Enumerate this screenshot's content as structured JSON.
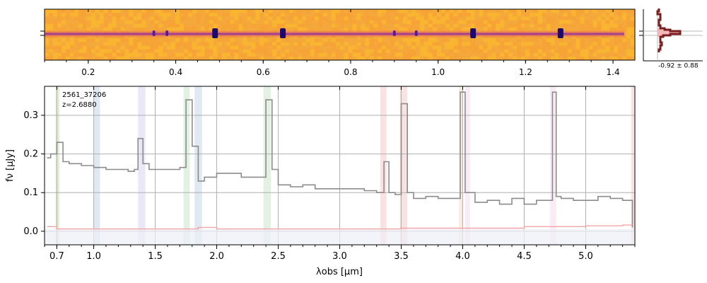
{
  "chart_data": [
    {
      "type": "heatmap",
      "panel": "2d-spectrum",
      "x_ticks": [
        "0.2",
        "0.4",
        "0.6",
        "0.8",
        "1.0",
        "1.2",
        "1.4"
      ],
      "x_tick_values": [
        0.2,
        0.4,
        0.6,
        0.8,
        1.0,
        1.2,
        1.4
      ],
      "xlim": [
        0.1,
        1.45
      ],
      "colormap": "plasma",
      "trace_absorption_features_x": [
        0.35,
        0.38,
        0.49,
        0.645,
        0.9,
        0.95,
        1.08,
        1.28
      ]
    },
    {
      "type": "line",
      "panel": "spatial-profile",
      "annotation": "-0.92 ± 0.88",
      "profile_color": "#7a1f1f",
      "fill_color": "#f4b6b8"
    },
    {
      "type": "line",
      "panel": "1d-spectrum",
      "annotations": [
        "2561_37206",
        "z=2.6880"
      ],
      "xlabel": "λobs [μm]",
      "ylabel": "fν [μJy]",
      "x_ticks": [
        "0.7",
        "1.0",
        "1.5",
        "2.0",
        "2.5",
        "3.0",
        "3.5",
        "4.0",
        "4.5",
        "5.0"
      ],
      "x_tick_values": [
        0.7,
        1.0,
        1.5,
        2.0,
        2.5,
        3.0,
        3.5,
        4.0,
        4.5,
        5.0
      ],
      "y_ticks": [
        "0.0",
        "0.1",
        "0.2",
        "0.3"
      ],
      "y_tick_values": [
        0.0,
        0.1,
        0.2,
        0.3
      ],
      "xlim": [
        0.6,
        5.4
      ],
      "ylim": [
        -0.035,
        0.375
      ],
      "grid": true,
      "series": [
        {
          "color": "#8c8c8c",
          "x": [
            0.62,
            0.65,
            0.7,
            0.75,
            0.8,
            0.9,
            1.0,
            1.1,
            1.2,
            1.28,
            1.33,
            1.36,
            1.4,
            1.45,
            1.5,
            1.6,
            1.7,
            1.75,
            1.8,
            1.85,
            1.9,
            2.0,
            2.1,
            2.2,
            2.3,
            2.4,
            2.45,
            2.5,
            2.6,
            2.7,
            2.8,
            3.0,
            3.2,
            3.3,
            3.36,
            3.4,
            3.45,
            3.5,
            3.55,
            3.6,
            3.7,
            3.8,
            3.9,
            3.98,
            4.02,
            4.1,
            4.2,
            4.3,
            4.4,
            4.5,
            4.6,
            4.7,
            4.73,
            4.76,
            4.8,
            4.9,
            5.0,
            5.1,
            5.2,
            5.3,
            5.35,
            5.38
          ],
          "y": [
            0.19,
            0.2,
            0.23,
            0.18,
            0.175,
            0.17,
            0.165,
            0.16,
            0.16,
            0.155,
            0.16,
            0.24,
            0.175,
            0.16,
            0.16,
            0.16,
            0.165,
            0.34,
            0.22,
            0.13,
            0.14,
            0.15,
            0.15,
            0.14,
            0.14,
            0.34,
            0.16,
            0.12,
            0.115,
            0.12,
            0.11,
            0.11,
            0.105,
            0.1,
            0.18,
            0.1,
            0.095,
            0.33,
            0.1,
            0.085,
            0.09,
            0.085,
            0.085,
            0.36,
            0.1,
            0.075,
            0.08,
            0.07,
            0.085,
            0.07,
            0.08,
            0.08,
            0.36,
            0.09,
            0.085,
            0.08,
            0.08,
            0.09,
            0.085,
            0.08,
            0.08,
            0.01
          ]
        },
        {
          "color": "#f4a6a6",
          "x": [
            0.62,
            0.7,
            1.0,
            1.5,
            1.8,
            1.85,
            2.0,
            2.5,
            3.0,
            3.5,
            4.0,
            4.5,
            5.0,
            5.3,
            5.38
          ],
          "y": [
            0.012,
            0.006,
            0.006,
            0.006,
            0.006,
            0.01,
            0.006,
            0.006,
            0.006,
            0.008,
            0.008,
            0.012,
            0.014,
            0.016,
            0.016
          ]
        }
      ],
      "shaded_regions": [
        {
          "x": [
            0.69,
            0.72
          ],
          "color": "#cfe3b8"
        },
        {
          "x": [
            1.0,
            1.05
          ],
          "color": "#c8dbe8"
        },
        {
          "x": [
            1.36,
            1.42
          ],
          "color": "#dcd8f0"
        },
        {
          "x": [
            1.73,
            1.78
          ],
          "color": "#cfe8cf"
        },
        {
          "x": [
            1.82,
            1.88
          ],
          "color": "#c8dbe8"
        },
        {
          "x": [
            2.38,
            2.44
          ],
          "color": "#cfe8cf"
        },
        {
          "x": [
            3.33,
            3.38
          ],
          "color": "#f3cece"
        },
        {
          "x": [
            3.49,
            3.55
          ],
          "color": "#f3cece"
        },
        {
          "x": [
            3.97,
            4.0
          ],
          "color": "#f8e0cc"
        },
        {
          "x": [
            4.02,
            4.06
          ],
          "color": "#f6dff0"
        },
        {
          "x": [
            4.71,
            4.76
          ],
          "color": "#f6dff0"
        },
        {
          "x": [
            5.37,
            5.4
          ],
          "color": "#f3cece"
        }
      ]
    }
  ]
}
